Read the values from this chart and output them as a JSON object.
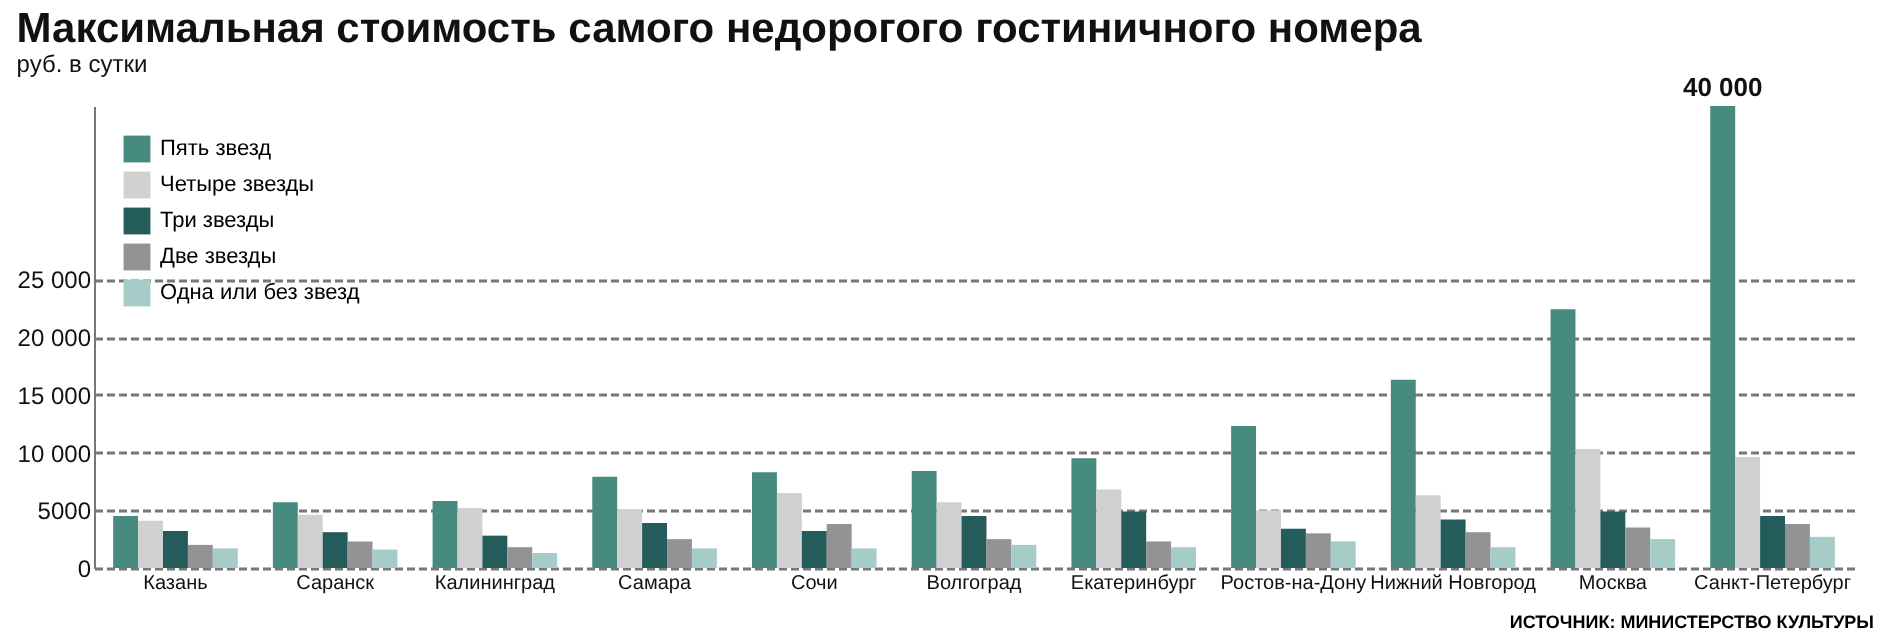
{
  "chart_data": {
    "type": "bar",
    "title": "Максимальная стоимость самого недорогого гостиничного  номера",
    "ylabel": "руб. в сутки",
    "categories": [
      "Казань",
      "Саранск",
      "Калининград",
      "Самара",
      "Сочи",
      "Волгоград",
      "Екатеринбург",
      "Ростов-на-Дону",
      "Нижний Новгород",
      "Москва",
      "Санкт-Петербург"
    ],
    "series": [
      {
        "name": "Пять звезд",
        "color": "#468a80",
        "values": [
          4500,
          5700,
          5800,
          7900,
          8300,
          8400,
          9500,
          12300,
          16300,
          22400,
          40000
        ],
        "value_labels": [
          null,
          null,
          null,
          null,
          null,
          null,
          null,
          null,
          null,
          null,
          "40 000"
        ]
      },
      {
        "name": "Четыре звезды",
        "color": "#d0d0d0",
        "values": [
          4100,
          4600,
          5200,
          5100,
          6500,
          5700,
          6800,
          5000,
          6300,
          10300,
          9600
        ]
      },
      {
        "name": "Три звезды",
        "color": "#235c5a",
        "values": [
          3200,
          3100,
          2800,
          3900,
          3200,
          4500,
          4900,
          3400,
          4200,
          4900,
          4500
        ]
      },
      {
        "name": "Две звезды",
        "color": "#939396",
        "values": [
          2000,
          2300,
          1800,
          2500,
          3800,
          2500,
          2300,
          3000,
          3100,
          3500,
          3800
        ]
      },
      {
        "name": "Одна или без звезд",
        "color": "#a5ccc7",
        "values": [
          1700,
          1600,
          1300,
          1700,
          1700,
          2000,
          1800,
          2300,
          1800,
          2500,
          2700
        ]
      }
    ],
    "ylim": [
      0,
      40000
    ],
    "yticks": [
      0,
      5000,
      {
        "value": 10000,
        "label": "10 000"
      },
      {
        "value": 15000,
        "label": "15 000"
      },
      {
        "value": 20000,
        "label": "20 000"
      },
      {
        "value": 25000,
        "label": "25 000"
      }
    ],
    "grid": "y",
    "legend": "top left",
    "annotations": [
      "ИСТОЧНИК: МИНИСТЕРСТВО КУЛЬТУРЫ"
    ]
  }
}
